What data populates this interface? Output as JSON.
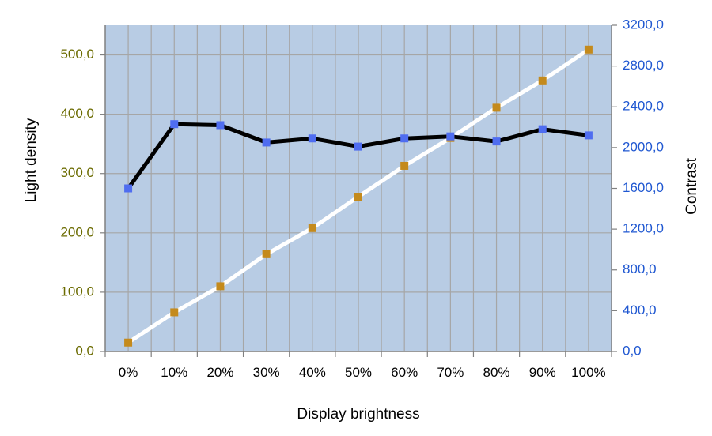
{
  "colors": {
    "plot_background": "#b8cce4",
    "grid": "#a6a6a6",
    "left_axis": "#6b6b00",
    "right_axis": "#1f57d1",
    "density_line": "#ffffff",
    "density_marker": "#c48a1c",
    "contrast_line": "#000000",
    "contrast_marker": "#4f6df0"
  },
  "chart_data": {
    "type": "line",
    "xlabel": "Display brightness",
    "ylabel_left": "Light density",
    "ylabel_right": "Contrast",
    "categories": [
      "0%",
      "10%",
      "20%",
      "30%",
      "40%",
      "50%",
      "60%",
      "70%",
      "80%",
      "90%",
      "100%"
    ],
    "ylim_left": [
      0,
      550
    ],
    "ylim_right": [
      0,
      3200
    ],
    "left_ticks": [
      "0,0",
      "100,0",
      "200,0",
      "300,0",
      "400,0",
      "500,0"
    ],
    "right_ticks": [
      "0,0",
      "400,0",
      "800,0",
      "1200,0",
      "1600,0",
      "2000,0",
      "2400,0",
      "2800,0",
      "3200,0"
    ],
    "grid": true,
    "series": [
      {
        "axis": "left",
        "values": [
          15,
          66,
          110,
          164,
          208,
          261,
          313,
          360,
          411,
          457,
          509
        ]
      },
      {
        "axis": "right",
        "values": [
          1600,
          2230,
          2220,
          2050,
          2090,
          2010,
          2090,
          2110,
          2060,
          2180,
          2120
        ]
      }
    ]
  }
}
